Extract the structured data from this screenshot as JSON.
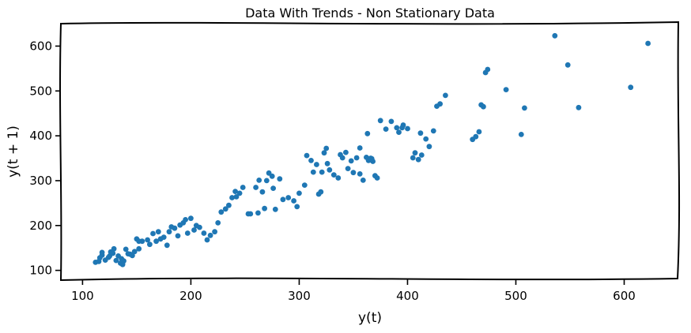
{
  "chart_data": {
    "type": "scatter",
    "title": "Data With Trends - Non Stationary Data",
    "xlabel": "y(t)",
    "ylabel": "y(t + 1)",
    "xlim": [
      80,
      650
    ],
    "ylim": [
      80,
      650
    ],
    "xticks": [
      "100",
      "200",
      "300",
      "400",
      "500",
      "600"
    ],
    "yticks": [
      "100",
      "200",
      "300",
      "400",
      "500",
      "600"
    ],
    "grid": false,
    "marker_color": "#1f77b4",
    "points": [
      [
        112,
        118
      ],
      [
        116,
        128
      ],
      [
        118,
        134
      ],
      [
        118,
        140
      ],
      [
        121,
        123
      ],
      [
        125,
        132
      ],
      [
        126,
        141
      ],
      [
        129,
        148
      ],
      [
        131,
        122
      ],
      [
        133,
        132
      ],
      [
        135,
        116
      ],
      [
        136,
        126
      ],
      [
        138,
        121
      ],
      [
        140,
        147
      ],
      [
        142,
        137
      ],
      [
        144,
        136
      ],
      [
        148,
        142
      ],
      [
        150,
        170
      ],
      [
        152,
        148
      ],
      [
        155,
        165
      ],
      [
        160,
        168
      ],
      [
        165,
        182
      ],
      [
        168,
        165
      ],
      [
        172,
        170
      ],
      [
        175,
        174
      ],
      [
        178,
        156
      ],
      [
        180,
        186
      ],
      [
        185,
        194
      ],
      [
        190,
        201
      ],
      [
        195,
        213
      ],
      [
        200,
        216
      ],
      [
        205,
        200
      ],
      [
        208,
        196
      ],
      [
        212,
        183
      ],
      [
        215,
        168
      ],
      [
        218,
        178
      ],
      [
        222,
        186
      ],
      [
        225,
        206
      ],
      [
        228,
        230
      ],
      [
        232,
        237
      ],
      [
        235,
        245
      ],
      [
        238,
        262
      ],
      [
        242,
        264
      ],
      [
        245,
        272
      ],
      [
        248,
        285
      ],
      [
        255,
        226
      ],
      [
        262,
        228
      ],
      [
        266,
        275
      ],
      [
        268,
        238
      ],
      [
        270,
        300
      ],
      [
        272,
        317
      ],
      [
        275,
        310
      ],
      [
        278,
        236
      ],
      [
        285,
        258
      ],
      [
        290,
        262
      ],
      [
        295,
        255
      ],
      [
        300,
        272
      ],
      [
        305,
        290
      ],
      [
        307,
        356
      ],
      [
        311,
        345
      ],
      [
        313,
        319
      ],
      [
        316,
        336
      ],
      [
        318,
        270
      ],
      [
        320,
        275
      ],
      [
        323,
        362
      ],
      [
        325,
        372
      ],
      [
        328,
        324
      ],
      [
        332,
        313
      ],
      [
        336,
        306
      ],
      [
        340,
        351
      ],
      [
        345,
        327
      ],
      [
        348,
        344
      ],
      [
        350,
        318
      ],
      [
        353,
        351
      ],
      [
        356,
        315
      ],
      [
        359,
        301
      ],
      [
        362,
        352
      ],
      [
        364,
        345
      ],
      [
        367,
        349
      ],
      [
        370,
        311
      ],
      [
        372,
        306
      ],
      [
        375,
        434
      ],
      [
        380,
        415
      ],
      [
        385,
        432
      ],
      [
        390,
        418
      ],
      [
        392,
        408
      ],
      [
        396,
        424
      ],
      [
        400,
        416
      ],
      [
        405,
        351
      ],
      [
        407,
        362
      ],
      [
        410,
        347
      ],
      [
        413,
        357
      ],
      [
        417,
        393
      ],
      [
        420,
        376
      ],
      [
        424,
        411
      ],
      [
        427,
        466
      ],
      [
        430,
        471
      ],
      [
        435,
        490
      ],
      [
        460,
        392
      ],
      [
        463,
        398
      ],
      [
        466,
        409
      ],
      [
        468,
        469
      ],
      [
        470,
        465
      ],
      [
        472,
        541
      ],
      [
        474,
        548
      ],
      [
        491,
        503
      ],
      [
        505,
        403
      ],
      [
        508,
        462
      ],
      [
        536,
        623
      ],
      [
        548,
        558
      ],
      [
        558,
        463
      ],
      [
        606,
        508
      ],
      [
        622,
        606
      ],
      [
        152,
        165
      ],
      [
        170,
        186
      ],
      [
        182,
        197
      ],
      [
        197,
        183
      ],
      [
        203,
        190
      ],
      [
        253,
        226
      ],
      [
        263,
        301
      ],
      [
        282,
        304
      ],
      [
        298,
        242
      ],
      [
        321,
        319
      ],
      [
        343,
        363
      ],
      [
        356,
        373
      ],
      [
        363,
        405
      ],
      [
        395,
        418
      ],
      [
        412,
        406
      ],
      [
        115,
        120
      ],
      [
        124,
        129
      ],
      [
        128,
        138
      ],
      [
        137,
        113
      ],
      [
        146,
        133
      ],
      [
        162,
        158
      ],
      [
        188,
        177
      ],
      [
        193,
        206
      ],
      [
        241,
        276
      ],
      [
        260,
        285
      ],
      [
        276,
        283
      ],
      [
        326,
        338
      ],
      [
        338,
        358
      ],
      [
        366,
        350
      ],
      [
        368,
        343
      ]
    ]
  }
}
